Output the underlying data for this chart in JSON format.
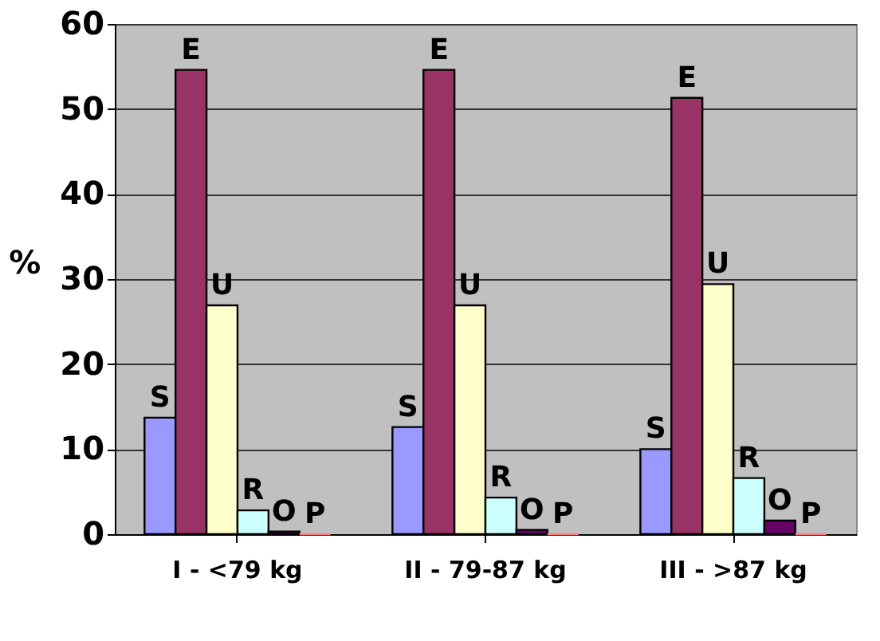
{
  "chart_data": {
    "type": "bar",
    "ylabel": "%",
    "categories": [
      "I - <79 kg",
      "II - 79-87 kg",
      "III - >87 kg"
    ],
    "series": [
      {
        "name": "S",
        "color": "#9999ff",
        "values": [
          13.7,
          12.6,
          10
        ]
      },
      {
        "name": "E",
        "color": "#993366",
        "values": [
          54.6,
          54.6,
          51.3
        ]
      },
      {
        "name": "U",
        "color": "#ffffcc",
        "values": [
          26.9,
          26.9,
          29.4
        ]
      },
      {
        "name": "R",
        "color": "#ccffff",
        "values": [
          2.8,
          4.3,
          6.6
        ]
      },
      {
        "name": "O",
        "color": "#660066",
        "values": [
          0.3,
          0.5,
          1.6
        ]
      },
      {
        "name": "P",
        "color": "#ff8080",
        "values": [
          0,
          0,
          0
        ]
      }
    ],
    "ylim": [
      0,
      60
    ],
    "yticks": [
      0,
      10,
      20,
      30,
      40,
      50,
      60
    ],
    "grid": "y",
    "legend": false
  }
}
